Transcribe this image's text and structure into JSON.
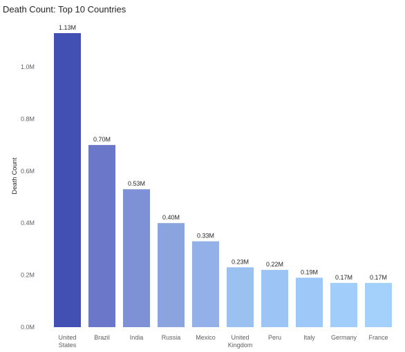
{
  "chart_data": {
    "type": "bar",
    "title": "Death Count: Top 10 Countries",
    "xlabel": "",
    "ylabel": "Death Count",
    "ylim": [
      0,
      1.13
    ],
    "yticks": [
      "0.0M",
      "0.2M",
      "0.4M",
      "0.6M",
      "0.8M",
      "1.0M"
    ],
    "ytick_values": [
      0,
      0.2,
      0.4,
      0.6,
      0.8,
      1.0
    ],
    "grid": false,
    "categories": [
      [
        "United",
        "States"
      ],
      [
        "Brazil"
      ],
      [
        "India"
      ],
      [
        "Russia"
      ],
      [
        "Mexico"
      ],
      [
        "United",
        "Kingdom"
      ],
      [
        "Peru"
      ],
      [
        "Italy"
      ],
      [
        "Germany"
      ],
      [
        "France"
      ]
    ],
    "values": [
      1.13,
      0.7,
      0.53,
      0.4,
      0.33,
      0.23,
      0.22,
      0.19,
      0.17,
      0.17
    ],
    "data_labels": [
      "1.13M",
      "0.70M",
      "0.53M",
      "0.40M",
      "0.33M",
      "0.23M",
      "0.22M",
      "0.19M",
      "0.17M",
      "0.17M"
    ],
    "colors": [
      "#4150b2",
      "#6b77c8",
      "#7e91d6",
      "#8aa4e0",
      "#93b1e8",
      "#9bc1f1",
      "#9cc4f5",
      "#9dc8f8",
      "#a0cdfa",
      "#a3d1fc"
    ]
  }
}
